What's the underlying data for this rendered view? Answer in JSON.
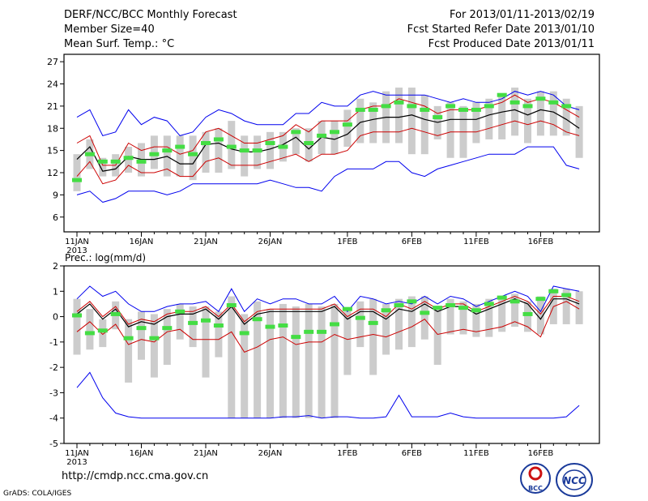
{
  "header": {
    "title": "DERF/NCC/BCC Monthly Forecast",
    "member_size": "Member Size=40",
    "variable": "Mean Surf. Temp.: °C",
    "period": "For 2013/01/11-2013/02/19",
    "started": "Fcst Started Refer Date 2013/01/10",
    "produced": "Fcst Produced Date 2013/01/11"
  },
  "footer": {
    "url": "http://cmdp.ncc.cma.gov.cn",
    "credit": "GrADS: COLA/IGES",
    "logo1_text": "BCC",
    "logo2_text": "NCC"
  },
  "colors": {
    "max_min": "#0000ee",
    "spread": "#cc0000",
    "mean": "#000000",
    "box": "#cccccc",
    "marker": "#44dd44"
  },
  "chart_data": [
    {
      "type": "line",
      "title": "Mean Surf. Temp.: °C",
      "x_tick_labels": [
        "11JAN",
        "16JAN",
        "21JAN",
        "26JAN",
        "1FEB",
        "6FEB",
        "11FEB",
        "16FEB"
      ],
      "x_tick_days": [
        1,
        6,
        11,
        16,
        22,
        27,
        32,
        37
      ],
      "x_sub_label": "2013",
      "days": [
        1,
        2,
        3,
        4,
        5,
        6,
        7,
        8,
        9,
        10,
        11,
        12,
        13,
        14,
        15,
        16,
        17,
        18,
        19,
        20,
        21,
        22,
        23,
        24,
        25,
        26,
        27,
        28,
        29,
        30,
        31,
        32,
        33,
        34,
        35,
        36,
        37,
        38,
        39,
        40
      ],
      "ylim": [
        4,
        28
      ],
      "yticks": [
        6,
        9,
        12,
        15,
        18,
        21,
        24,
        27
      ],
      "series": [
        {
          "name": "max",
          "values": [
            19.5,
            20.5,
            17,
            17.5,
            20.5,
            18.5,
            19.5,
            19,
            17,
            17.5,
            19.5,
            20.5,
            20,
            19,
            18.5,
            18.5,
            18.5,
            20,
            20,
            21.5,
            21,
            21,
            22.5,
            23,
            22.5,
            22.5,
            22.5,
            22.5,
            22,
            21.5,
            22,
            21.5,
            21.5,
            22,
            23,
            22.5,
            23,
            22.5,
            21,
            20.5
          ]
        },
        {
          "name": "upper",
          "values": [
            16,
            17,
            13,
            13,
            16,
            15,
            15.5,
            15.5,
            14.5,
            15,
            17.5,
            18,
            17,
            16,
            16,
            16.5,
            17,
            18.5,
            17.5,
            19,
            19,
            19,
            20.5,
            21,
            21,
            22,
            21.5,
            21,
            20,
            20.5,
            20.5,
            20.5,
            21,
            21.5,
            22.5,
            21.5,
            22,
            21.5,
            20.5,
            19.5
          ]
        },
        {
          "name": "mean",
          "values": [
            13.8,
            15.5,
            12.2,
            12.5,
            14.2,
            13.8,
            13.8,
            14.2,
            13.2,
            13.2,
            15.8,
            16,
            15.2,
            14.8,
            14.8,
            15.2,
            15.8,
            16.8,
            15.2,
            16.8,
            16.5,
            17.2,
            18.8,
            19.2,
            19.5,
            19.5,
            19.8,
            19.2,
            18.8,
            19.2,
            19.2,
            19.2,
            19.8,
            20.2,
            20.5,
            19.8,
            20.5,
            20.2,
            19.2,
            18
          ]
        },
        {
          "name": "lower",
          "values": [
            11.5,
            13.5,
            10.5,
            11,
            13,
            12,
            12,
            12.5,
            11.5,
            11.5,
            13.5,
            14,
            13,
            13,
            13,
            13.5,
            14,
            14.5,
            13.5,
            14.5,
            14.5,
            15,
            17,
            17.5,
            17.5,
            17.5,
            18,
            17.5,
            17,
            17.5,
            17.5,
            17.5,
            18,
            18.5,
            19,
            18.5,
            19,
            18.5,
            17.5,
            17
          ]
        },
        {
          "name": "min",
          "values": [
            9,
            9.5,
            8,
            8.5,
            9.5,
            9.5,
            9.5,
            9,
            9.5,
            10.5,
            10.5,
            10.5,
            10.5,
            10.5,
            10.5,
            11,
            10.5,
            10,
            10,
            9.5,
            11.5,
            12.5,
            12.5,
            12.5,
            13.5,
            13.5,
            12,
            11.5,
            12.5,
            13,
            13.5,
            14,
            14.5,
            14.5,
            14.5,
            15.5,
            15.5,
            15.5,
            13,
            12.5
          ]
        },
        {
          "name": "observed",
          "values": [
            11,
            14.5,
            13.5,
            13.5,
            14,
            13.5,
            14.5,
            15,
            15.5,
            14.5,
            16,
            16.5,
            15.5,
            15,
            15,
            16,
            15.5,
            17.5,
            16,
            17,
            17.5,
            18.5,
            20.5,
            20.5,
            21,
            21.5,
            21,
            20.5,
            19.5,
            21,
            20.5,
            20.5,
            21,
            22.5,
            21.5,
            21,
            22,
            21.5,
            21
          ]
        },
        {
          "name": "box_high",
          "values": [
            14.5,
            16.5,
            14,
            14.5,
            15.5,
            16,
            17,
            17,
            17,
            17,
            17.5,
            18,
            19,
            17,
            17,
            17.5,
            17.5,
            18,
            18,
            19,
            19,
            20.5,
            22,
            21.5,
            23,
            23.5,
            23.5,
            22.5,
            21,
            21.5,
            21,
            21.5,
            22,
            22.5,
            23.5,
            22,
            23,
            23,
            22,
            21
          ]
        },
        {
          "name": "box_low",
          "values": [
            9.5,
            12.5,
            11.5,
            11.5,
            12,
            11.5,
            12.5,
            11.5,
            11.5,
            11,
            12,
            12,
            12.5,
            11.5,
            12.5,
            12.5,
            13.5,
            14.5,
            13.5,
            14.5,
            14.5,
            15.5,
            16,
            16,
            16,
            16,
            14.5,
            14.5,
            16.5,
            14,
            14,
            16,
            16.5,
            16.5,
            17,
            16,
            17,
            17,
            17,
            14
          ]
        }
      ]
    },
    {
      "type": "line",
      "title": "Prec.: log(mm/d)",
      "x_tick_labels": [
        "11JAN",
        "16JAN",
        "21JAN",
        "26JAN",
        "1FEB",
        "6FEB",
        "11FEB",
        "16FEB"
      ],
      "x_tick_days": [
        1,
        6,
        11,
        16,
        22,
        27,
        32,
        37
      ],
      "x_sub_label": "2013",
      "days": [
        1,
        2,
        3,
        4,
        5,
        6,
        7,
        8,
        9,
        10,
        11,
        12,
        13,
        14,
        15,
        16,
        17,
        18,
        19,
        20,
        21,
        22,
        23,
        24,
        25,
        26,
        27,
        28,
        29,
        30,
        31,
        32,
        33,
        34,
        35,
        36,
        37,
        38,
        39,
        40
      ],
      "ylim": [
        -5,
        2
      ],
      "yticks": [
        -5,
        -4,
        -3,
        -2,
        -1,
        0,
        1,
        2
      ],
      "series": [
        {
          "name": "max",
          "values": [
            0.7,
            1.2,
            0.8,
            1,
            0.5,
            0.2,
            0.2,
            0.4,
            0.5,
            0.5,
            0.6,
            0.2,
            1.1,
            0.2,
            0.7,
            0.5,
            0.7,
            0.7,
            0.5,
            0.5,
            0.8,
            0.2,
            0.8,
            0.7,
            0.5,
            0.6,
            0.5,
            0.8,
            0.5,
            0.8,
            0.7,
            0.4,
            0.6,
            0.8,
            1.0,
            0.8,
            0.2,
            1.2,
            1.1,
            1.0
          ]
        },
        {
          "name": "upper",
          "values": [
            0.2,
            0.6,
            0,
            0.4,
            -0.3,
            -0.1,
            -0.2,
            0.1,
            0.2,
            0.2,
            0.4,
            0,
            0.5,
            -0.2,
            0.2,
            0.3,
            0.3,
            0.3,
            0.3,
            0.3,
            0.5,
            0,
            0.3,
            0.3,
            0,
            0.5,
            0.3,
            0.6,
            0.3,
            0.5,
            0.5,
            0.2,
            0.4,
            0.6,
            0.8,
            0.6,
            0.1,
            0.8,
            0.8,
            0.6
          ]
        },
        {
          "name": "mean",
          "values": [
            0.1,
            0.5,
            -0.1,
            0.3,
            -0.4,
            -0.2,
            -0.3,
            0,
            0.1,
            0.1,
            0.3,
            -0.1,
            0.4,
            -0.3,
            0.1,
            0.2,
            0.2,
            0.2,
            0.2,
            0.2,
            0.4,
            -0.1,
            0.2,
            0.2,
            -0.1,
            0.3,
            0.2,
            0.5,
            0.2,
            0.4,
            0.4,
            0.1,
            0.3,
            0.5,
            0.7,
            0.5,
            -0.1,
            0.7,
            0.7,
            0.5
          ]
        },
        {
          "name": "lower",
          "values": [
            -0.6,
            -0.2,
            -0.7,
            -0.3,
            -1.1,
            -0.9,
            -1,
            -0.6,
            -0.5,
            -0.9,
            -0.9,
            -0.9,
            -0.6,
            -1.4,
            -1.2,
            -0.9,
            -0.8,
            -1.1,
            -1.0,
            -1.0,
            -0.7,
            -0.9,
            -0.8,
            -0.7,
            -0.8,
            -0.6,
            -0.4,
            -0.1,
            -0.7,
            -0.6,
            -0.5,
            -0.6,
            -0.5,
            -0.4,
            -0.2,
            -0.4,
            -0.8,
            0.4,
            0.6,
            0.3
          ]
        },
        {
          "name": "min",
          "values": [
            -2.8,
            -2.2,
            -3.2,
            -3.8,
            -3.95,
            -4,
            -4,
            -4,
            -4,
            -4,
            -4,
            -4,
            -4,
            -4,
            -4,
            -4,
            -3.95,
            -3.95,
            -3.9,
            -4,
            -3.95,
            -3.95,
            -4,
            -4,
            -3.95,
            -3.1,
            -3.95,
            -3.95,
            -3.95,
            -3.8,
            -3.95,
            -4,
            -4,
            -4,
            -4,
            -4,
            -4,
            -4,
            -3.95,
            -3.5
          ]
        },
        {
          "name": "observed",
          "values": [
            0.05,
            -0.65,
            -0.55,
            0.1,
            -0.85,
            -0.45,
            -0.85,
            -0.45,
            0.2,
            -0.25,
            -0.15,
            -0.35,
            0.45,
            -0.65,
            -0.1,
            -0.4,
            -0.35,
            -0.8,
            -0.6,
            -0.6,
            -0.3,
            0.3,
            -0.05,
            -0.25,
            0.25,
            0.45,
            0.6,
            0.15,
            0.35,
            0.45,
            0.35,
            0.25,
            0.5,
            0.75,
            0.6,
            0.1,
            0.7,
            1.0,
            0.85
          ]
        },
        {
          "name": "box_high",
          "values": [
            0.7,
            0.3,
            -0.1,
            0.6,
            -0.1,
            0.2,
            0.1,
            0.3,
            0.5,
            0.4,
            0.4,
            0.2,
            0.8,
            0.1,
            0.6,
            0.3,
            0.5,
            0.4,
            0.5,
            0.4,
            0.5,
            0.3,
            0.6,
            0.7,
            0.5,
            0.7,
            0.8,
            0.8,
            0.4,
            0.7,
            0.6,
            0.5,
            0.7,
            0.8,
            0.9,
            0.6,
            0.8,
            1.1,
            1.1,
            1.0
          ]
        },
        {
          "name": "box_low",
          "values": [
            -1.5,
            -1.3,
            -1.2,
            -0.5,
            -2.6,
            -1.7,
            -2.4,
            -1.9,
            -0.9,
            -1.2,
            -2.4,
            -1.6,
            -4,
            -4,
            -4,
            -4,
            -4,
            -4,
            -4,
            -4,
            -4,
            -2.3,
            -1.2,
            -2.3,
            -1.5,
            -1.3,
            -1.2,
            -0.9,
            -1.9,
            -0.7,
            -0.7,
            -0.8,
            -0.8,
            -0.6,
            -0.4,
            -0.6,
            -0.7,
            -0.3,
            -0.3,
            -0.3
          ]
        }
      ]
    }
  ]
}
